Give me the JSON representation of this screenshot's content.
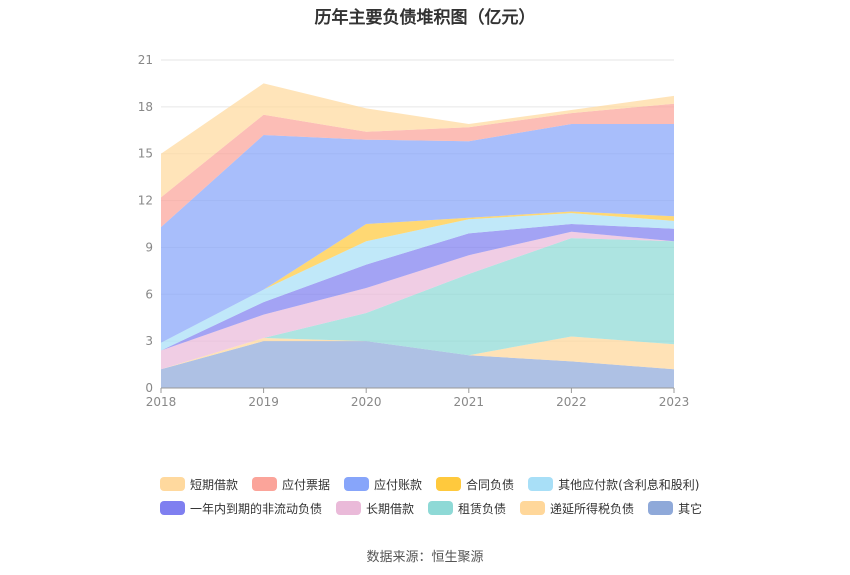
{
  "title": "历年主要负债堆积图（亿元）",
  "source": "数据来源：恒生聚源",
  "chart_data": {
    "type": "area",
    "stacked": true,
    "title": "历年主要负债堆积图（亿元）",
    "xlabel": "",
    "ylabel": "",
    "categories": [
      "2018",
      "2019",
      "2020",
      "2021",
      "2022",
      "2023"
    ],
    "ylim": [
      0,
      21
    ],
    "yticks": [
      0,
      3,
      6,
      9,
      12,
      15,
      18,
      21
    ],
    "grid": true,
    "legend_position": "bottom",
    "series": [
      {
        "name": "其它",
        "color": "#8FA9D9",
        "values": [
          1.2,
          3.0,
          3.0,
          2.1,
          1.7,
          1.2
        ]
      },
      {
        "name": "递延所得税负债",
        "color": "#FFD79A",
        "values": [
          0.0,
          0.2,
          0.0,
          0.0,
          1.6,
          1.6
        ]
      },
      {
        "name": "租赁负债",
        "color": "#8ED9D6",
        "values": [
          0.0,
          0.0,
          1.8,
          5.2,
          6.3,
          6.6
        ]
      },
      {
        "name": "长期借款",
        "color": "#EABAD9",
        "values": [
          1.2,
          1.5,
          1.6,
          1.2,
          0.4,
          0.0
        ]
      },
      {
        "name": "一年内到期的非流动负债",
        "color": "#7F7FF0",
        "values": [
          0.0,
          0.8,
          1.5,
          1.4,
          0.5,
          0.8
        ]
      },
      {
        "name": "其他应付款(含利息和股利)",
        "color": "#A8DFF7",
        "values": [
          0.5,
          0.8,
          1.5,
          0.9,
          0.7,
          0.5
        ]
      },
      {
        "name": "合同负债",
        "color": "#FFC93D",
        "values": [
          0.0,
          0.0,
          1.1,
          0.1,
          0.1,
          0.3
        ]
      },
      {
        "name": "应付账款",
        "color": "#87A5FA",
        "values": [
          7.4,
          9.9,
          5.4,
          4.9,
          5.6,
          5.9
        ]
      },
      {
        "name": "应付票据",
        "color": "#FBA49A",
        "values": [
          1.9,
          1.3,
          0.5,
          0.9,
          0.7,
          1.3
        ]
      },
      {
        "name": "短期借款",
        "color": "#FFD99E",
        "values": [
          2.8,
          2.0,
          1.5,
          0.2,
          0.2,
          0.5
        ]
      }
    ],
    "legend_order": [
      "短期借款",
      "应付票据",
      "应付账款",
      "合同负债",
      "其他应付款(含利息和股利)",
      "一年内到期的非流动负债",
      "长期借款",
      "租赁负债",
      "递延所得税负债",
      "其它"
    ]
  }
}
